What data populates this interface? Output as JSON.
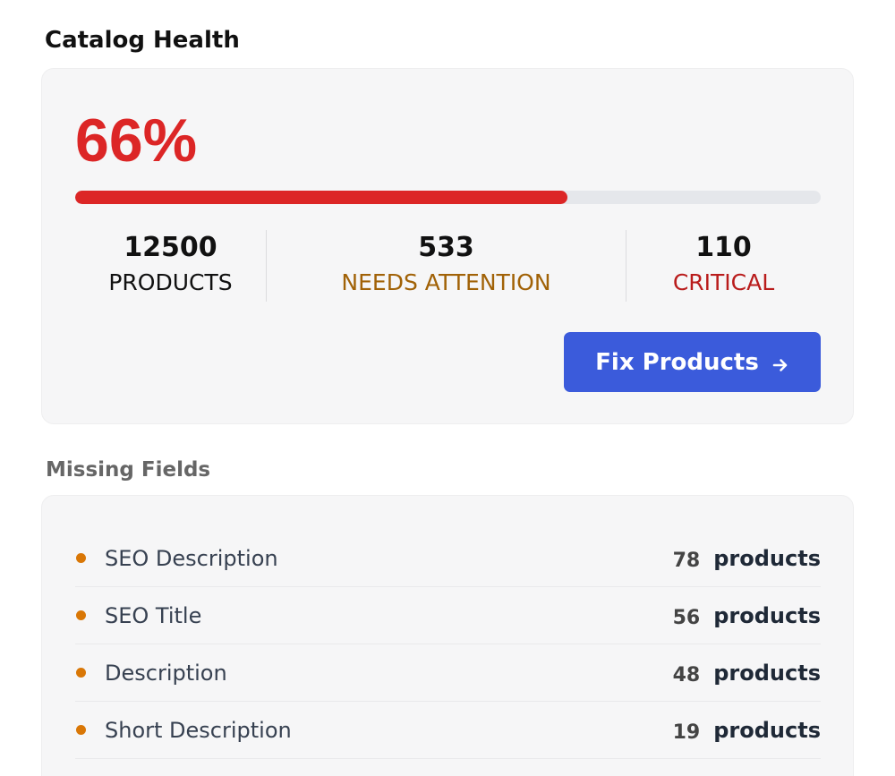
{
  "header": {
    "title": "Catalog Health"
  },
  "health": {
    "score_text": "66%",
    "score_fraction": 0.66,
    "colors": {
      "score": "#dc2626",
      "track": "#e5e7eb"
    },
    "stats": [
      {
        "value": "12500",
        "label": "PRODUCTS",
        "color": "#111111"
      },
      {
        "value": "533",
        "label": "NEEDS ATTENTION",
        "color": "#a16207"
      },
      {
        "value": "110",
        "label": "CRITICAL",
        "color": "#b91c1c"
      }
    ],
    "action": {
      "label": "Fix Products",
      "icon": "arrow-right-icon",
      "color": "#3b5bdb"
    }
  },
  "missing_fields": {
    "title": "Missing Fields",
    "dot_color": "#d97706",
    "items": [
      {
        "name": "SEO Description",
        "count": "78",
        "unit": "products"
      },
      {
        "name": "SEO Title",
        "count": "56",
        "unit": "products"
      },
      {
        "name": "Description",
        "count": "48",
        "unit": "products"
      },
      {
        "name": "Short Description",
        "count": "19",
        "unit": "products"
      }
    ]
  }
}
